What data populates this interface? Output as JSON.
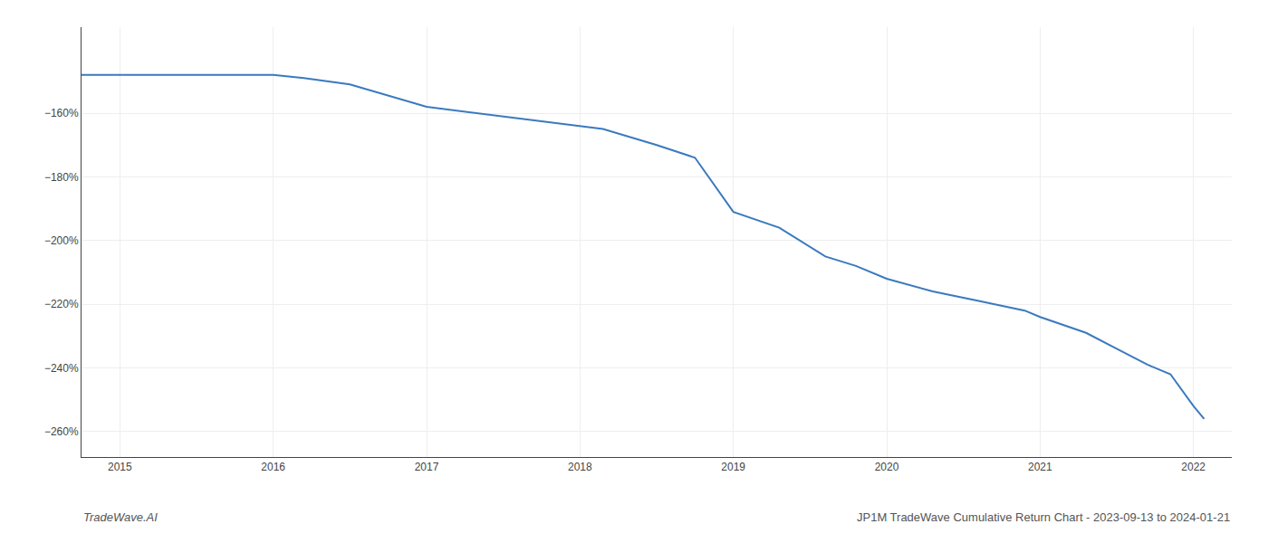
{
  "chart_data": {
    "type": "line",
    "x": [
      2014.75,
      2015.0,
      2015.5,
      2016.0,
      2016.2,
      2016.5,
      2017.0,
      2017.5,
      2018.0,
      2018.15,
      2018.5,
      2018.75,
      2019.0,
      2019.3,
      2019.6,
      2019.8,
      2020.0,
      2020.3,
      2020.6,
      2020.9,
      2021.0,
      2021.3,
      2021.5,
      2021.7,
      2021.85,
      2022.0,
      2022.07
    ],
    "values": [
      -148,
      -148,
      -148,
      -148,
      -149,
      -151,
      -158,
      -161,
      -164,
      -165,
      -170,
      -174,
      -191,
      -196,
      -205,
      -208,
      -212,
      -216,
      -219,
      -222,
      -224,
      -229,
      -234,
      -239,
      -242,
      -252,
      -256
    ],
    "color": "#3a7abf",
    "xlim": [
      2014.75,
      2022.25
    ],
    "ylim": [
      -268,
      -133
    ],
    "xticks": [
      2015,
      2016,
      2017,
      2018,
      2019,
      2020,
      2021,
      2022
    ],
    "yticks": [
      {
        "value": -160,
        "label": "−160%"
      },
      {
        "value": -180,
        "label": "−180%"
      },
      {
        "value": -200,
        "label": "−200%"
      },
      {
        "value": -220,
        "label": "−220%"
      },
      {
        "value": -240,
        "label": "−240%"
      },
      {
        "value": -260,
        "label": "−260%"
      }
    ],
    "grid": true,
    "annotations": [
      "TradeWave.AI",
      "JP1M TradeWave Cumulative Return Chart - 2023-09-13 to 2024-01-21"
    ]
  }
}
